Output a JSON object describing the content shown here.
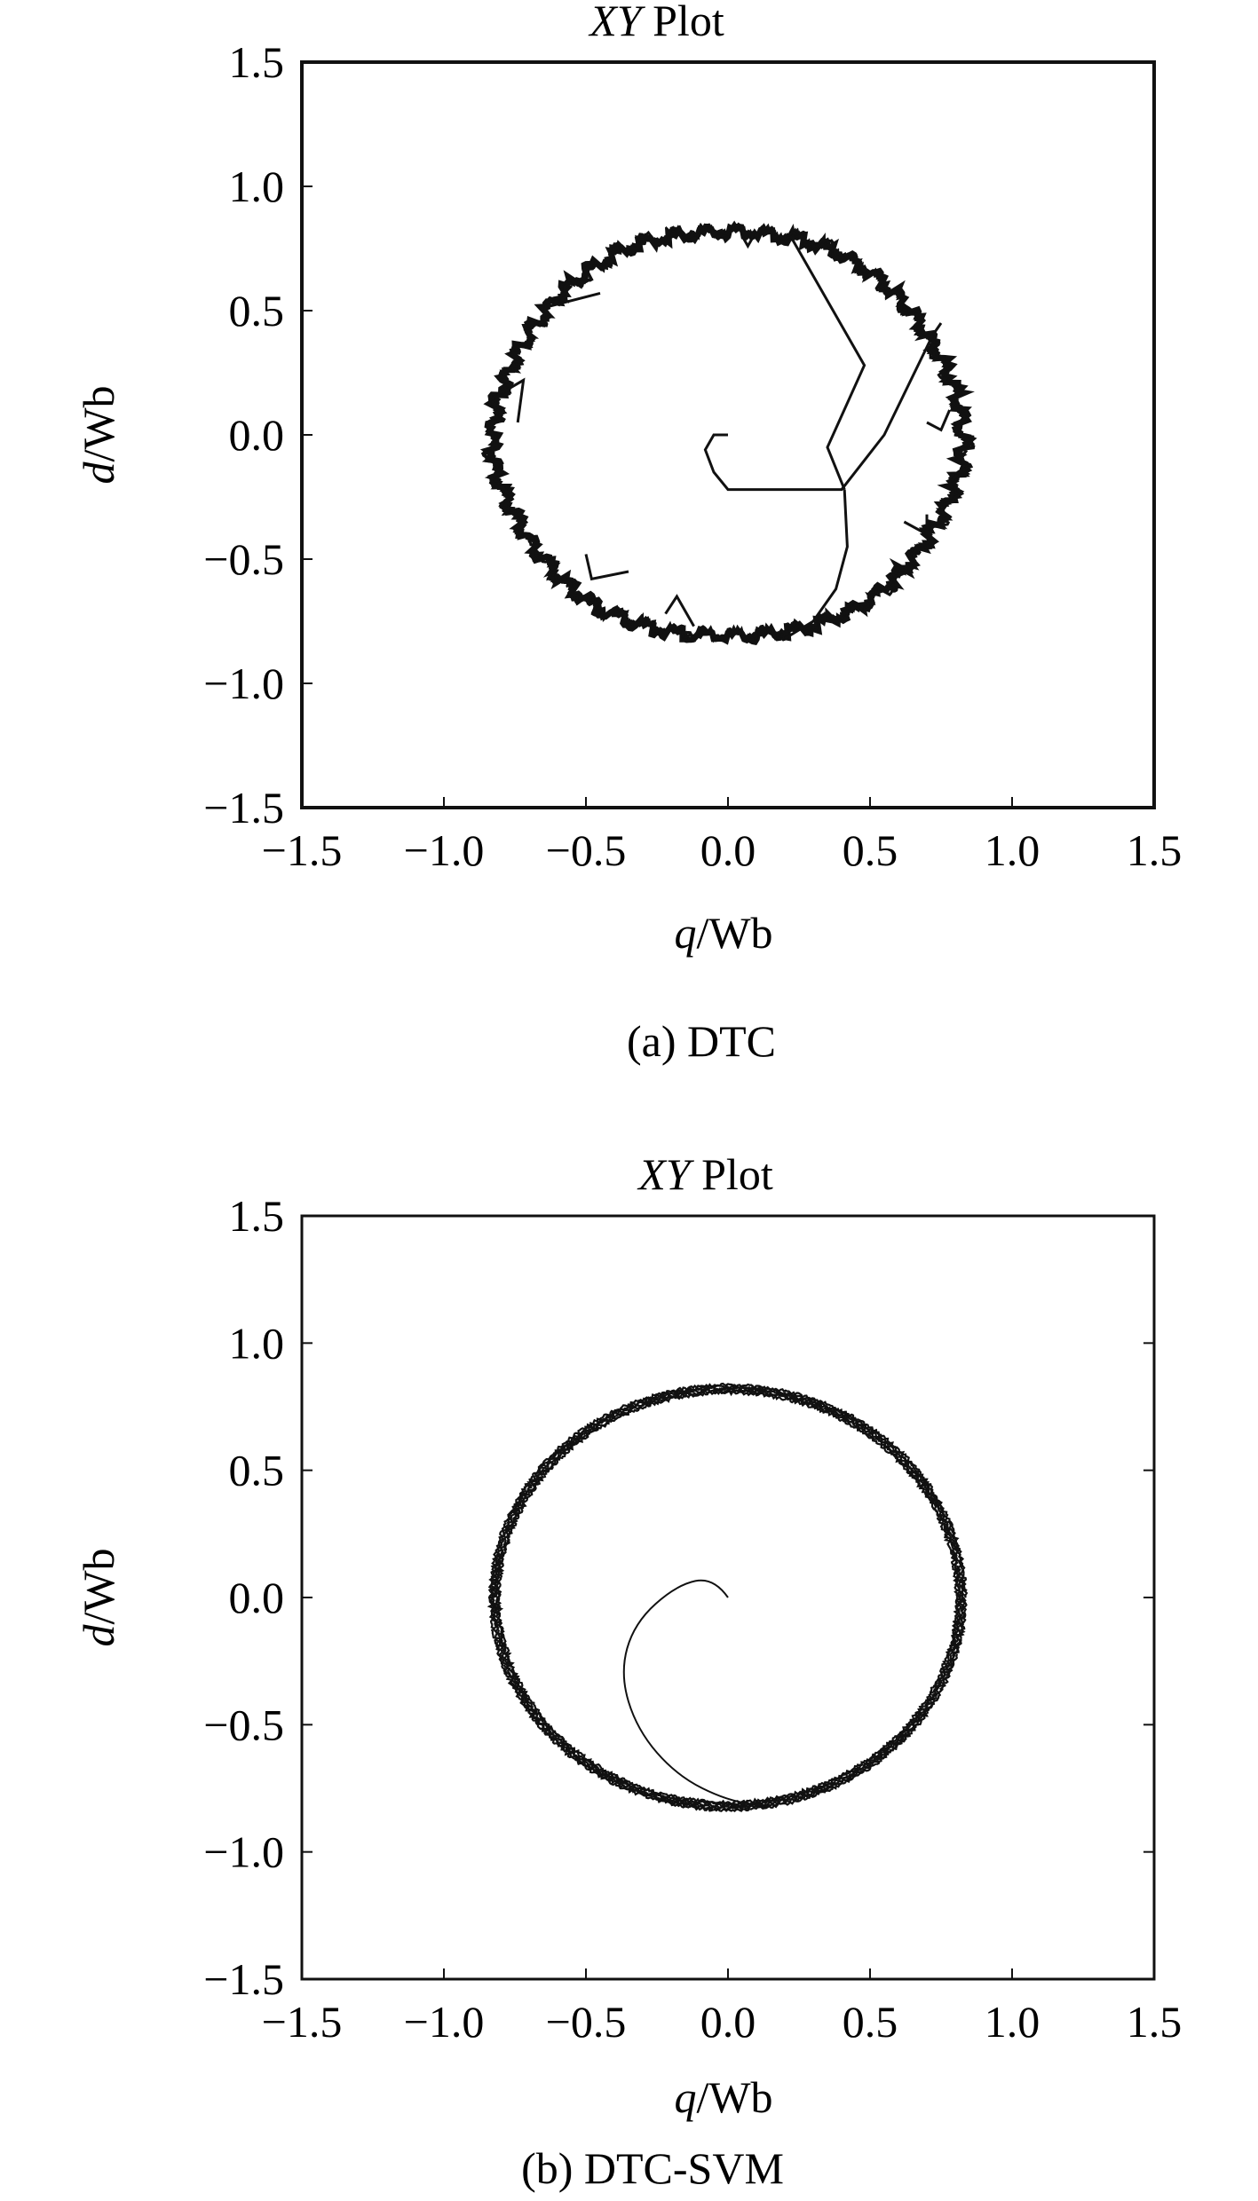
{
  "figure": {
    "caption_a": "(a) DTC",
    "caption_b": "(b) DTC-SVM"
  },
  "chart_data": [
    {
      "id": "a",
      "type": "line",
      "title": {
        "italic": "XY",
        "rest": "Plot"
      },
      "xlabel": {
        "italic": "q",
        "rest": "/Wb"
      },
      "ylabel": {
        "italic": "d",
        "rest": "/Wb"
      },
      "xlim": [
        -1.5,
        1.5
      ],
      "ylim": [
        -1.5,
        1.5
      ],
      "xticks": [
        "−1.5",
        "−1.0",
        "−0.5",
        "0.0",
        "0.5",
        "1.0",
        "1.5"
      ],
      "yticks": [
        "1.5",
        "1.0",
        "0.5",
        "0.0",
        "−0.5",
        "−1.0",
        "−1.5"
      ],
      "grid": false,
      "series": [
        {
          "kind": "flux-locus",
          "radius": 0.82,
          "style": "hexagonal-ripple",
          "transient": [
            [
              0.0,
              0.0
            ],
            [
              -0.05,
              0.0
            ],
            [
              -0.08,
              -0.06
            ],
            [
              -0.05,
              -0.15
            ],
            [
              0.0,
              -0.22
            ],
            [
              0.15,
              -0.22
            ],
            [
              0.4,
              -0.22
            ],
            [
              0.55,
              0.0
            ],
            [
              0.72,
              0.4
            ],
            [
              0.75,
              0.45
            ]
          ],
          "transient2": [
            [
              0.41,
              -0.22
            ],
            [
              0.42,
              -0.45
            ],
            [
              0.38,
              -0.62
            ],
            [
              0.3,
              -0.75
            ],
            [
              0.2,
              -0.82
            ]
          ],
          "transient3": [
            [
              0.41,
              -0.22
            ],
            [
              0.35,
              -0.05
            ],
            [
              0.48,
              0.28
            ],
            [
              0.22,
              0.8
            ]
          ]
        }
      ]
    },
    {
      "id": "b",
      "type": "line",
      "title": {
        "italic": "XY",
        "rest": "Plot"
      },
      "xlabel": {
        "italic": "q",
        "rest": "/Wb"
      },
      "ylabel": {
        "italic": "d",
        "rest": "/Wb"
      },
      "xlim": [
        -1.5,
        1.5
      ],
      "ylim": [
        -1.5,
        1.5
      ],
      "xticks": [
        "−1.5",
        "−1.0",
        "−0.5",
        "0.0",
        "0.5",
        "1.0",
        "1.5"
      ],
      "yticks": [
        "1.5",
        "1.0",
        "0.5",
        "0.0",
        "−0.5",
        "−1.0",
        "−1.5"
      ],
      "grid": false,
      "series": [
        {
          "kind": "flux-locus",
          "radius": 0.82,
          "style": "smooth",
          "transient": [
            [
              0.0,
              0.0
            ],
            [
              -0.05,
              0.08
            ],
            [
              -0.18,
              0.05
            ],
            [
              -0.33,
              -0.1
            ],
            [
              -0.38,
              -0.3
            ],
            [
              -0.32,
              -0.52
            ],
            [
              -0.18,
              -0.7
            ],
            [
              0.0,
              -0.8
            ],
            [
              0.15,
              -0.82
            ]
          ]
        }
      ]
    }
  ]
}
